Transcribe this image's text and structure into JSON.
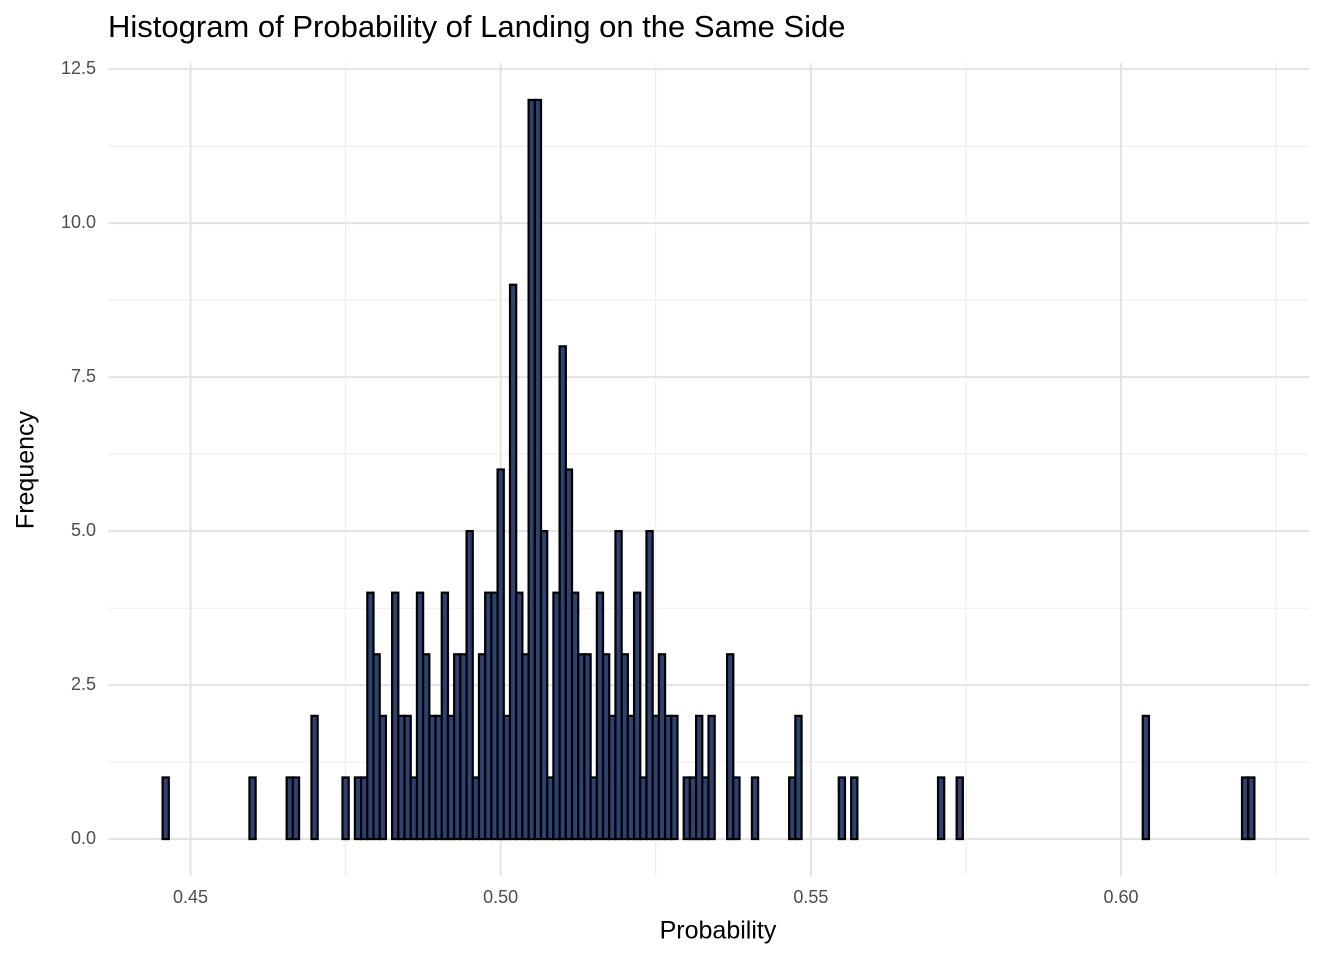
{
  "chart_data": {
    "type": "histogram",
    "title": "Histogram of Probability of Landing on the Same Side",
    "x_label": "Probability",
    "y_label": "Frequency",
    "bins": [
      0.4455,
      0.4465,
      0.4475,
      0.4485,
      0.4495,
      0.4505,
      0.4515,
      0.4525,
      0.4535,
      0.4545,
      0.4555,
      0.4565,
      0.4575,
      0.4585,
      0.4595,
      0.4605,
      0.4615,
      0.4625,
      0.4635,
      0.4645,
      0.4655,
      0.4665,
      0.4675,
      0.4685,
      0.4695,
      0.4705,
      0.4715,
      0.4725,
      0.4735,
      0.4745,
      0.4755,
      0.4765,
      0.4775,
      0.4785,
      0.4795,
      0.4805,
      0.4815,
      0.4825,
      0.4835,
      0.4845,
      0.4855,
      0.4865,
      0.4875,
      0.4885,
      0.4895,
      0.4905,
      0.4915,
      0.4925,
      0.4935,
      0.4945,
      0.4955,
      0.4965,
      0.4975,
      0.4985,
      0.4995,
      0.5005,
      0.5015,
      0.5025,
      0.5035,
      0.5045,
      0.5055,
      0.5065,
      0.5075,
      0.5085,
      0.5095,
      0.5105,
      0.5115,
      0.5125,
      0.5135,
      0.5145,
      0.5155,
      0.5165,
      0.5175,
      0.5185,
      0.5195,
      0.5205,
      0.5215,
      0.5225,
      0.5235,
      0.5245,
      0.5255,
      0.5265,
      0.5275,
      0.5285,
      0.5295,
      0.5305,
      0.5315,
      0.5325,
      0.5335,
      0.5345,
      0.5355,
      0.5365,
      0.5375,
      0.5385,
      0.5395,
      0.5405,
      0.5415,
      0.5425,
      0.5435,
      0.5445,
      0.5455,
      0.5465,
      0.5475,
      0.5485,
      0.5495,
      0.5505,
      0.5515,
      0.5525,
      0.5535,
      0.5545,
      0.5555,
      0.5565,
      0.5575,
      0.5585,
      0.5595,
      0.5605,
      0.5615,
      0.5625,
      0.5635,
      0.5645,
      0.5655,
      0.5665,
      0.5675,
      0.5685,
      0.5695,
      0.5705,
      0.5715,
      0.5725,
      0.5735,
      0.5745,
      0.5755,
      0.5765,
      0.5775,
      0.5785,
      0.5795,
      0.5805,
      0.5815,
      0.5825,
      0.5835,
      0.5845,
      0.5855,
      0.5865,
      0.5875,
      0.5885,
      0.5895,
      0.5905,
      0.5915,
      0.5925,
      0.5935,
      0.5945,
      0.5955,
      0.5965,
      0.5975,
      0.5985,
      0.5995,
      0.6005,
      0.6015,
      0.6025,
      0.6035,
      0.6045,
      0.6055,
      0.6065,
      0.6075,
      0.6085,
      0.6095,
      0.6105,
      0.6115,
      0.6125,
      0.6135,
      0.6145,
      0.6155,
      0.6165,
      0.6175,
      0.6185,
      0.6195,
      0.6205,
      0.6215
    ],
    "counts": [
      1,
      0,
      0,
      0,
      0,
      0,
      0,
      0,
      0,
      0,
      0,
      0,
      0,
      0,
      1,
      0,
      0,
      0,
      0,
      0,
      1,
      1,
      0,
      0,
      2,
      0,
      0,
      0,
      0,
      1,
      0,
      1,
      1,
      4,
      3,
      2,
      0,
      4,
      2,
      2,
      1,
      4,
      3,
      2,
      2,
      4,
      2,
      3,
      3,
      5,
      1,
      3,
      4,
      4,
      6,
      2,
      9,
      4,
      3,
      12,
      12,
      5,
      1,
      4,
      8,
      6,
      4,
      3,
      3,
      1,
      4,
      3,
      2,
      5,
      3,
      2,
      4,
      1,
      5,
      2,
      3,
      2,
      2,
      0,
      1,
      1,
      2,
      1,
      2,
      0,
      0,
      3,
      1,
      0,
      0,
      1,
      0,
      0,
      0,
      0,
      0,
      1,
      2,
      0,
      0,
      0,
      0,
      0,
      0,
      1,
      0,
      1,
      0,
      0,
      0,
      0,
      0,
      0,
      0,
      0,
      0,
      0,
      0,
      0,
      0,
      1,
      0,
      0,
      1,
      0,
      0,
      0,
      0,
      0,
      0,
      0,
      0,
      0,
      0,
      0,
      0,
      0,
      0,
      0,
      0,
      0,
      0,
      0,
      0,
      0,
      0,
      0,
      0,
      0,
      0,
      0,
      0,
      0,
      2,
      0,
      0,
      0,
      0,
      0,
      0,
      0,
      0,
      0,
      0,
      0,
      0,
      0,
      0,
      0,
      1,
      1
    ],
    "color": "#2e4272",
    "edge_color": "#000000",
    "xlim": [
      0.4367,
      0.6303
    ],
    "ylim": [
      -0.6,
      12.6
    ],
    "xticks": [
      0.45,
      {
        "value": 0.5,
        "label": "0.50"
      },
      0.55,
      {
        "value": 0.6,
        "label": "0.60"
      }
    ],
    "yticks": [
      {
        "value": 0,
        "label": "0.0"
      },
      2.5,
      {
        "value": 5,
        "label": "5.0"
      },
      7.5,
      {
        "value": 10,
        "label": "10.0"
      },
      12.5
    ],
    "x_minor_ticks": [
      0.475,
      0.525,
      0.575,
      0.625
    ],
    "y_minor_ticks": [
      1.25,
      3.75,
      6.25,
      8.75,
      11.25
    ],
    "grid": true
  }
}
